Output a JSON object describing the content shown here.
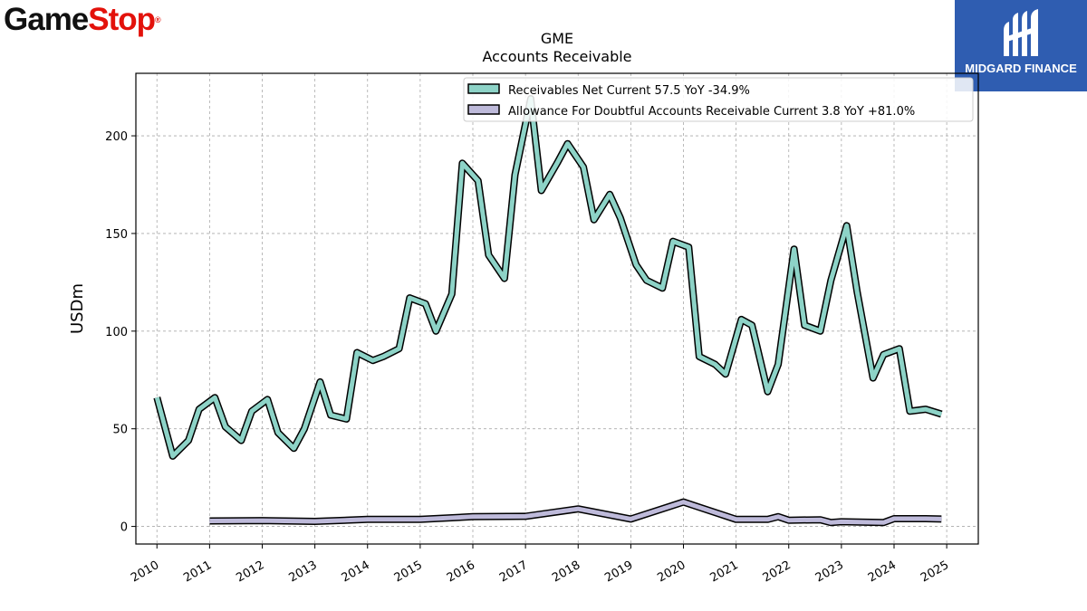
{
  "logos": {
    "gamestop": {
      "part1": "Game",
      "part2": "Stop",
      "mark": "®",
      "color_dark": "#111111",
      "color_red": "#e3120b"
    },
    "midgard": {
      "text": "MIDGARD FINANCE",
      "bg": "#2f5db1",
      "icon": "midgard-m-logo-icon"
    }
  },
  "chart_data": {
    "type": "line",
    "title": "GME",
    "subtitle": "Accounts Receivable",
    "xlabel": "",
    "ylabel": "USDm",
    "xlim": [
      2009.6,
      2025.6
    ],
    "ylim": [
      -9,
      232
    ],
    "x_ticks": [
      "2010",
      "2011",
      "2012",
      "2013",
      "2014",
      "2015",
      "2016",
      "2017",
      "2018",
      "2019",
      "2020",
      "2021",
      "2022",
      "2023",
      "2024",
      "2025"
    ],
    "y_ticks": [
      0,
      50,
      100,
      150,
      200
    ],
    "grid": true,
    "legend_position": "top-right",
    "series": [
      {
        "name": "Receivables Net Current",
        "legend_label": "Receivables Net Current  57.5 YoY -34.9%",
        "color": "#8dd3c7",
        "points": [
          [
            2010.0,
            66
          ],
          [
            2010.3,
            36
          ],
          [
            2010.6,
            44
          ],
          [
            2010.8,
            60
          ],
          [
            2011.1,
            66
          ],
          [
            2011.3,
            51
          ],
          [
            2011.6,
            44
          ],
          [
            2011.8,
            59
          ],
          [
            2012.1,
            65
          ],
          [
            2012.3,
            48
          ],
          [
            2012.6,
            40
          ],
          [
            2012.8,
            50
          ],
          [
            2013.1,
            74
          ],
          [
            2013.3,
            57
          ],
          [
            2013.6,
            55
          ],
          [
            2013.8,
            89
          ],
          [
            2014.1,
            85
          ],
          [
            2014.3,
            87
          ],
          [
            2014.6,
            91
          ],
          [
            2014.8,
            117
          ],
          [
            2015.1,
            114
          ],
          [
            2015.3,
            100
          ],
          [
            2015.6,
            119
          ],
          [
            2015.8,
            186
          ],
          [
            2016.1,
            177
          ],
          [
            2016.3,
            139
          ],
          [
            2016.6,
            127
          ],
          [
            2016.8,
            180
          ],
          [
            2017.1,
            219
          ],
          [
            2017.3,
            172
          ],
          [
            2017.6,
            186
          ],
          [
            2017.8,
            196
          ],
          [
            2018.1,
            184
          ],
          [
            2018.3,
            157
          ],
          [
            2018.6,
            170
          ],
          [
            2018.8,
            158
          ],
          [
            2019.1,
            134
          ],
          [
            2019.3,
            126
          ],
          [
            2019.6,
            122
          ],
          [
            2019.8,
            146
          ],
          [
            2020.1,
            143
          ],
          [
            2020.3,
            87
          ],
          [
            2020.6,
            83
          ],
          [
            2020.8,
            78
          ],
          [
            2021.1,
            106
          ],
          [
            2021.3,
            103
          ],
          [
            2021.6,
            69
          ],
          [
            2021.8,
            83
          ],
          [
            2022.1,
            142
          ],
          [
            2022.3,
            103
          ],
          [
            2022.6,
            100
          ],
          [
            2022.8,
            126
          ],
          [
            2023.1,
            154
          ],
          [
            2023.3,
            120
          ],
          [
            2023.6,
            76
          ],
          [
            2023.8,
            88
          ],
          [
            2024.1,
            91
          ],
          [
            2024.3,
            59
          ],
          [
            2024.6,
            60
          ],
          [
            2024.9,
            57.5
          ]
        ]
      },
      {
        "name": "Allowance For Doubtful Accounts Receivable Current",
        "legend_label": "Allowance For Doubtful Accounts Receivable Current  3.8 YoY +81.0%",
        "color": "#bebada",
        "points": [
          [
            2011.0,
            2.8
          ],
          [
            2012.0,
            3.0
          ],
          [
            2013.0,
            2.6
          ],
          [
            2014.0,
            3.6
          ],
          [
            2015.0,
            3.6
          ],
          [
            2016.0,
            5.0
          ],
          [
            2017.0,
            5.2
          ],
          [
            2018.0,
            9.0
          ],
          [
            2019.0,
            3.8
          ],
          [
            2020.0,
            12.5
          ],
          [
            2021.0,
            3.6
          ],
          [
            2021.6,
            3.6
          ],
          [
            2021.8,
            5.0
          ],
          [
            2022.0,
            3.2
          ],
          [
            2022.6,
            3.4
          ],
          [
            2022.8,
            2.0
          ],
          [
            2023.0,
            2.4
          ],
          [
            2023.8,
            2.0
          ],
          [
            2024.0,
            4.0
          ],
          [
            2024.6,
            4.0
          ],
          [
            2024.9,
            3.8
          ]
        ]
      }
    ]
  }
}
